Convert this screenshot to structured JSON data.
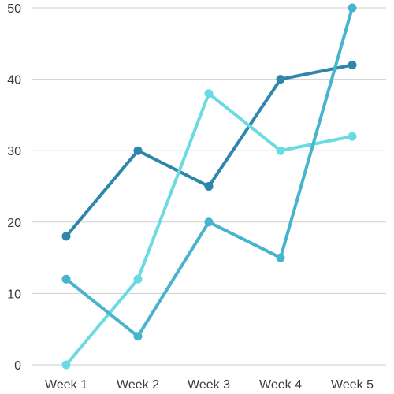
{
  "chart_data": {
    "type": "line",
    "title": "",
    "xlabel": "",
    "ylabel": "",
    "grid": true,
    "legend": "none",
    "categories": [
      "Week 1",
      "Week 2",
      "Week 3",
      "Week 4",
      "Week 5"
    ],
    "ylim": [
      0,
      50
    ],
    "yticks": [
      "0",
      "10",
      "20",
      "30",
      "40",
      "50"
    ],
    "series": [
      {
        "color": "#2e86ab",
        "values": [
          18,
          30,
          25,
          40,
          42
        ]
      },
      {
        "color": "#6adbe0",
        "values": [
          0,
          12,
          38,
          30,
          32
        ]
      },
      {
        "color": "#47b3cc",
        "values": [
          12,
          4,
          20,
          15,
          50
        ]
      }
    ]
  }
}
